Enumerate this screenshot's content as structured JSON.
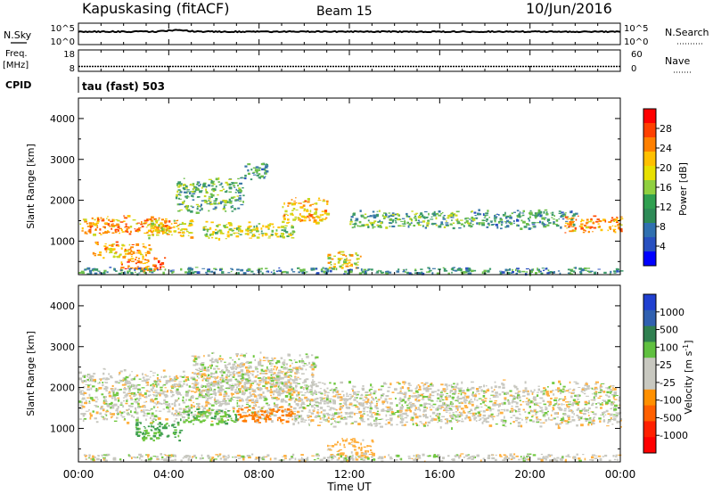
{
  "header": {
    "station": "Kapuskasing (fitACF)",
    "beam": "Beam 15",
    "date": "10/Jun/2016"
  },
  "top_panels": {
    "nsky": {
      "label": "N.Sky",
      "ticks": [
        "10^5",
        "10^0"
      ]
    },
    "nsearch": {
      "label": "N.Search",
      "ticks": [
        "10^5",
        "10^0"
      ]
    },
    "freq": {
      "label_line1": "Freq.",
      "label_line2": "[MHz]",
      "ticks": [
        "18",
        "8"
      ]
    },
    "nave": {
      "label": "Nave",
      "ticks": [
        "60",
        "0"
      ]
    },
    "cpid": {
      "label": "CPID",
      "value": "tau (fast) 503"
    }
  },
  "legends": {
    "power": {
      "title": "Power [dB]",
      "ticks": [
        "28",
        "24",
        "20",
        "16",
        "12",
        "8",
        "4"
      ],
      "colors": [
        "#ff0000",
        "#ff4000",
        "#ff8000",
        "#ffc000",
        "#e8e000",
        "#90d040",
        "#30a050",
        "#2e8b57",
        "#3070b0",
        "#2850c0",
        "#0000ff"
      ]
    },
    "velocity": {
      "title": "Velocity [m s",
      "title_sup": "-1",
      "title_close": "]",
      "ticks": [
        "1000",
        "500",
        "100",
        "25",
        "-25",
        "-100",
        "-500",
        "-1000"
      ],
      "colors": [
        "#2040d0",
        "#3060b0",
        "#308050",
        "#60c040",
        "#c8c8c0",
        "#c8c8c0",
        "#ff9000",
        "#ff6000",
        "#ff2000",
        "#ff0000"
      ]
    }
  },
  "axes": {
    "ylabel": "Slant Range [km]",
    "yticks": [
      "4000",
      "3000",
      "2000",
      "1000"
    ],
    "xlabel": "Time UT",
    "xticks": [
      "00:00",
      "04:00",
      "08:00",
      "12:00",
      "16:00",
      "20:00",
      "00:00"
    ]
  },
  "chart_data": [
    {
      "type": "heatmap",
      "name": "Power",
      "xlabel": "Time UT",
      "ylabel": "Slant Range [km]",
      "xlim": [
        0,
        24
      ],
      "ylim": [
        180,
        4500
      ],
      "x_unit": "hours UT",
      "color_scale": "Power [dB]",
      "bands": [
        {
          "t0": 0.0,
          "t1": 4.0,
          "r0": 1150,
          "r1": 1650,
          "value": 22
        },
        {
          "t0": 0.6,
          "t1": 3.2,
          "r0": 600,
          "r1": 1000,
          "value": 20
        },
        {
          "t0": 1.8,
          "t1": 3.8,
          "r0": 250,
          "r1": 650,
          "value": 24
        },
        {
          "t0": 3.0,
          "t1": 5.0,
          "r0": 1100,
          "r1": 1600,
          "value": 18
        },
        {
          "t0": 4.3,
          "t1": 7.3,
          "r0": 1700,
          "r1": 2600,
          "value": 12
        },
        {
          "t0": 7.3,
          "t1": 8.3,
          "r0": 2500,
          "r1": 3000,
          "value": 10
        },
        {
          "t0": 5.5,
          "t1": 9.5,
          "r0": 1050,
          "r1": 1500,
          "value": 16
        },
        {
          "t0": 9.0,
          "t1": 11.0,
          "r0": 1400,
          "r1": 2100,
          "value": 20
        },
        {
          "t0": 11.0,
          "t1": 12.5,
          "r0": 300,
          "r1": 800,
          "value": 18
        },
        {
          "t0": 12.0,
          "t1": 17.5,
          "r0": 1300,
          "r1": 1800,
          "value": 12
        },
        {
          "t0": 17.5,
          "t1": 22.0,
          "r0": 1300,
          "r1": 1800,
          "value": 10
        },
        {
          "t0": 21.5,
          "t1": 24.0,
          "r0": 1200,
          "r1": 1650,
          "value": 22
        },
        {
          "t0": 0.0,
          "t1": 24.0,
          "r0": 200,
          "r1": 380,
          "value": 10
        }
      ]
    },
    {
      "type": "heatmap",
      "name": "Velocity",
      "xlabel": "Time UT",
      "ylabel": "Slant Range [km]",
      "xlim": [
        0,
        24
      ],
      "ylim": [
        180,
        4500
      ],
      "x_unit": "hours UT",
      "color_scale": "Velocity [m s-1]",
      "bands": [
        {
          "t0": 0.0,
          "t1": 9.5,
          "r0": 1100,
          "r1": 2500,
          "value": 0
        },
        {
          "t0": 2.5,
          "t1": 4.5,
          "r0": 700,
          "r1": 1200,
          "value": 120
        },
        {
          "t0": 4.5,
          "t1": 7.0,
          "r0": 1100,
          "r1": 1500,
          "value": 90
        },
        {
          "t0": 7.0,
          "t1": 9.5,
          "r0": 1150,
          "r1": 1550,
          "value": -150
        },
        {
          "t0": 5.0,
          "t1": 10.5,
          "r0": 1800,
          "r1": 2900,
          "value": 0
        },
        {
          "t0": 9.5,
          "t1": 24.0,
          "r0": 1000,
          "r1": 2200,
          "value": 0
        },
        {
          "t0": 11.0,
          "t1": 13.0,
          "r0": 300,
          "r1": 800,
          "value": -60
        },
        {
          "t0": 0.0,
          "t1": 24.0,
          "r0": 200,
          "r1": 400,
          "value": 0
        }
      ]
    }
  ]
}
